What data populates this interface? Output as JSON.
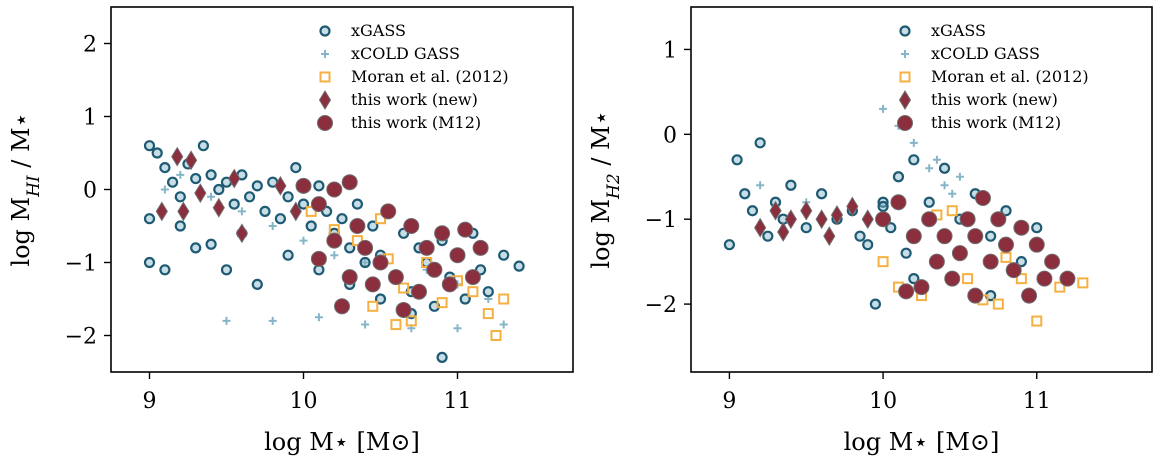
{
  "chart_data": [
    {
      "type": "scatter",
      "xlabel": "log M⋆ [M⊙]",
      "ylabel": "log M",
      "ylabel_sub": "HI",
      "ylabel_suffix": " / M⋆",
      "xlim": [
        8.75,
        11.75
      ],
      "ylim": [
        -2.5,
        2.5
      ],
      "xticks": [
        9,
        10,
        11
      ],
      "yticks": [
        -2,
        -1,
        0,
        1,
        2
      ],
      "grid": false,
      "legend_placement": "top-right",
      "series": [
        {
          "name": "xGASS",
          "marker": "open-circle",
          "color": "#1e5a73",
          "values": [
            [
              9.0,
              0.6
            ],
            [
              9.05,
              0.5
            ],
            [
              9.1,
              0.3
            ],
            [
              9.15,
              0.1
            ],
            [
              9.2,
              -0.1
            ],
            [
              9.25,
              0.35
            ],
            [
              9.3,
              0.15
            ],
            [
              9.35,
              0.6
            ],
            [
              9.4,
              0.2
            ],
            [
              9.45,
              0.0
            ],
            [
              9.5,
              0.1
            ],
            [
              9.55,
              -0.2
            ],
            [
              9.6,
              0.2
            ],
            [
              9.65,
              -0.1
            ],
            [
              9.7,
              0.05
            ],
            [
              9.75,
              -0.3
            ],
            [
              9.8,
              0.1
            ],
            [
              9.85,
              -0.4
            ],
            [
              9.9,
              -0.1
            ],
            [
              9.95,
              0.3
            ],
            [
              10.0,
              -0.2
            ],
            [
              10.05,
              -0.5
            ],
            [
              10.1,
              0.05
            ],
            [
              10.15,
              -0.3
            ],
            [
              10.2,
              -0.6
            ],
            [
              10.25,
              -0.4
            ],
            [
              10.3,
              -0.8
            ],
            [
              10.35,
              -0.2
            ],
            [
              10.4,
              -1.0
            ],
            [
              10.45,
              -0.5
            ],
            [
              10.5,
              -0.9
            ],
            [
              10.55,
              -0.3
            ],
            [
              10.6,
              -1.2
            ],
            [
              10.65,
              -0.6
            ],
            [
              10.7,
              -1.4
            ],
            [
              10.75,
              -0.8
            ],
            [
              10.8,
              -1.0
            ],
            [
              10.85,
              -1.6
            ],
            [
              10.9,
              -0.7
            ],
            [
              10.95,
              -1.2
            ],
            [
              11.0,
              -0.9
            ],
            [
              11.05,
              -1.5
            ],
            [
              11.1,
              -0.6
            ],
            [
              11.15,
              -1.1
            ],
            [
              11.2,
              -1.4
            ],
            [
              11.3,
              -0.9
            ],
            [
              11.4,
              -1.05
            ],
            [
              10.9,
              -2.3
            ],
            [
              9.0,
              -1.0
            ],
            [
              9.1,
              -1.1
            ],
            [
              9.3,
              -0.8
            ],
            [
              9.5,
              -1.1
            ],
            [
              9.7,
              -1.3
            ],
            [
              9.9,
              -0.9
            ],
            [
              10.1,
              -1.1
            ],
            [
              10.3,
              -1.3
            ],
            [
              10.5,
              -1.5
            ],
            [
              10.7,
              -1.7
            ],
            [
              9.0,
              -0.4
            ],
            [
              9.2,
              -0.5
            ],
            [
              9.4,
              -0.75
            ],
            [
              9.6,
              -0.6
            ]
          ]
        },
        {
          "name": "xCOLD GASS",
          "marker": "plus",
          "color": "#86b5c7",
          "values": [
            [
              9.1,
              0.0
            ],
            [
              9.2,
              0.2
            ],
            [
              9.4,
              -0.1
            ],
            [
              9.6,
              -0.3
            ],
            [
              9.8,
              -0.5
            ],
            [
              10.0,
              -0.7
            ],
            [
              10.2,
              -0.9
            ],
            [
              10.4,
              -1.0
            ],
            [
              10.6,
              -1.2
            ],
            [
              10.8,
              -1.1
            ],
            [
              11.0,
              -1.3
            ],
            [
              11.2,
              -1.5
            ],
            [
              9.5,
              -1.8
            ],
            [
              9.8,
              -1.8
            ],
            [
              10.1,
              -1.75
            ],
            [
              10.4,
              -1.85
            ],
            [
              10.7,
              -1.9
            ],
            [
              11.0,
              -1.9
            ],
            [
              11.3,
              -1.85
            ]
          ]
        },
        {
          "name": "Moran et al. (2012)",
          "marker": "open-square",
          "color": "#f5b041",
          "values": [
            [
              10.05,
              -0.3
            ],
            [
              10.2,
              -0.55
            ],
            [
              10.35,
              -0.7
            ],
            [
              10.45,
              -1.6
            ],
            [
              10.5,
              -0.4
            ],
            [
              10.55,
              -0.95
            ],
            [
              10.65,
              -1.35
            ],
            [
              10.7,
              -1.8
            ],
            [
              10.8,
              -1.0
            ],
            [
              10.9,
              -1.55
            ],
            [
              11.0,
              -1.25
            ],
            [
              11.1,
              -1.4
            ],
            [
              11.2,
              -1.7
            ],
            [
              11.3,
              -1.5
            ],
            [
              10.6,
              -1.85
            ],
            [
              11.25,
              -2.0
            ]
          ]
        },
        {
          "name": "this work (new)",
          "marker": "diamond",
          "color": "#8b2e3d",
          "values": [
            [
              9.08,
              -0.3
            ],
            [
              9.18,
              0.45
            ],
            [
              9.22,
              -0.3
            ],
            [
              9.27,
              0.4
            ],
            [
              9.33,
              -0.05
            ],
            [
              9.55,
              0.15
            ],
            [
              9.6,
              -0.6
            ],
            [
              9.85,
              0.05
            ],
            [
              9.95,
              -0.3
            ],
            [
              9.45,
              -0.25
            ]
          ]
        },
        {
          "name": "this work (M12)",
          "marker": "filled-circle",
          "color": "#8b2e3d",
          "values": [
            [
              10.0,
              0.05
            ],
            [
              10.1,
              -0.2
            ],
            [
              10.2,
              0.0
            ],
            [
              10.3,
              0.1
            ],
            [
              10.35,
              -0.5
            ],
            [
              10.4,
              -0.8
            ],
            [
              10.5,
              -1.0
            ],
            [
              10.55,
              -0.3
            ],
            [
              10.6,
              -1.2
            ],
            [
              10.7,
              -0.5
            ],
            [
              10.75,
              -1.4
            ],
            [
              10.8,
              -0.8
            ],
            [
              10.85,
              -1.1
            ],
            [
              10.9,
              -0.6
            ],
            [
              10.95,
              -1.3
            ],
            [
              11.0,
              -0.9
            ],
            [
              11.05,
              -0.55
            ],
            [
              11.1,
              -1.2
            ],
            [
              11.15,
              -0.8
            ],
            [
              10.25,
              -1.6
            ],
            [
              10.45,
              -1.3
            ],
            [
              10.65,
              -1.65
            ],
            [
              10.2,
              -0.7
            ],
            [
              10.1,
              -0.95
            ],
            [
              10.3,
              -1.2
            ]
          ]
        }
      ]
    },
    {
      "type": "scatter",
      "xlabel": "log M⋆ [M⊙]",
      "ylabel": "log M",
      "ylabel_sub": "H2",
      "ylabel_suffix": " / M⋆",
      "xlim": [
        8.75,
        11.75
      ],
      "ylim": [
        -2.8,
        1.5
      ],
      "xticks": [
        9,
        10,
        11
      ],
      "yticks": [
        -2,
        -1,
        0,
        1
      ],
      "grid": false,
      "legend_placement": "top-right",
      "series": [
        {
          "name": "xGASS",
          "marker": "open-circle",
          "color": "#1e5a73",
          "values": [
            [
              9.0,
              -1.3
            ],
            [
              9.05,
              -0.3
            ],
            [
              9.1,
              -0.7
            ],
            [
              9.15,
              -0.9
            ],
            [
              9.2,
              -0.1
            ],
            [
              9.25,
              -1.2
            ],
            [
              9.3,
              -0.8
            ],
            [
              9.35,
              -1.0
            ],
            [
              9.4,
              -0.6
            ],
            [
              9.5,
              -1.1
            ],
            [
              9.6,
              -0.7
            ],
            [
              9.7,
              -1.0
            ],
            [
              9.8,
              -0.9
            ],
            [
              9.9,
              -1.3
            ],
            [
              10.0,
              -0.8
            ],
            [
              10.05,
              -1.1
            ],
            [
              10.1,
              -0.5
            ],
            [
              10.15,
              -1.4
            ],
            [
              10.2,
              -0.3
            ],
            [
              10.3,
              -0.8
            ],
            [
              10.4,
              -0.4
            ],
            [
              10.5,
              -1.0
            ],
            [
              10.6,
              -0.7
            ],
            [
              10.7,
              -1.2
            ],
            [
              10.8,
              -0.9
            ],
            [
              10.9,
              -1.5
            ],
            [
              11.0,
              -1.1
            ],
            [
              9.95,
              -2.0
            ],
            [
              10.7,
              -1.9
            ],
            [
              10.2,
              -1.7
            ],
            [
              10.0,
              -0.85
            ],
            [
              9.85,
              -1.2
            ]
          ]
        },
        {
          "name": "xCOLD GASS",
          "marker": "plus",
          "color": "#86b5c7",
          "values": [
            [
              10.0,
              0.3
            ],
            [
              10.1,
              0.1
            ],
            [
              10.2,
              -0.1
            ],
            [
              10.3,
              -0.4
            ],
            [
              10.4,
              -0.6
            ],
            [
              10.45,
              -0.7
            ],
            [
              9.2,
              -0.6
            ],
            [
              9.5,
              -0.8
            ],
            [
              10.35,
              -0.3
            ],
            [
              10.5,
              -0.5
            ]
          ]
        },
        {
          "name": "Moran et al. (2012)",
          "marker": "open-square",
          "color": "#f5b041",
          "values": [
            [
              10.0,
              -1.5
            ],
            [
              10.1,
              -1.8
            ],
            [
              10.25,
              -1.9
            ],
            [
              10.35,
              -0.95
            ],
            [
              10.45,
              -0.9
            ],
            [
              10.55,
              -1.7
            ],
            [
              10.65,
              -1.95
            ],
            [
              10.8,
              -1.45
            ],
            [
              10.9,
              -1.7
            ],
            [
              11.0,
              -2.2
            ],
            [
              11.15,
              -1.8
            ],
            [
              11.3,
              -1.75
            ],
            [
              10.75,
              -2.0
            ]
          ]
        },
        {
          "name": "this work (new)",
          "marker": "diamond",
          "color": "#8b2e3d",
          "values": [
            [
              9.2,
              -1.1
            ],
            [
              9.3,
              -0.9
            ],
            [
              9.4,
              -1.0
            ],
            [
              9.5,
              -0.9
            ],
            [
              9.6,
              -1.0
            ],
            [
              9.7,
              -0.95
            ],
            [
              9.8,
              -0.85
            ],
            [
              9.9,
              -1.0
            ],
            [
              9.35,
              -1.15
            ],
            [
              9.65,
              -1.2
            ]
          ]
        },
        {
          "name": "this work (M12)",
          "marker": "filled-circle",
          "color": "#8b2e3d",
          "values": [
            [
              10.0,
              -1.0
            ],
            [
              10.1,
              -0.8
            ],
            [
              10.2,
              -1.2
            ],
            [
              10.3,
              -1.0
            ],
            [
              10.35,
              -1.5
            ],
            [
              10.4,
              -1.2
            ],
            [
              10.5,
              -1.4
            ],
            [
              10.55,
              -1.0
            ],
            [
              10.6,
              -1.2
            ],
            [
              10.65,
              -0.75
            ],
            [
              10.7,
              -1.5
            ],
            [
              10.75,
              -1.0
            ],
            [
              10.8,
              -1.3
            ],
            [
              10.85,
              -1.6
            ],
            [
              10.9,
              -1.1
            ],
            [
              10.95,
              -1.9
            ],
            [
              11.0,
              -1.3
            ],
            [
              11.05,
              -1.7
            ],
            [
              11.1,
              -1.5
            ],
            [
              11.2,
              -1.7
            ],
            [
              10.25,
              -1.8
            ],
            [
              10.15,
              -1.85
            ],
            [
              10.45,
              -1.7
            ],
            [
              10.6,
              -1.9
            ]
          ]
        }
      ]
    }
  ]
}
